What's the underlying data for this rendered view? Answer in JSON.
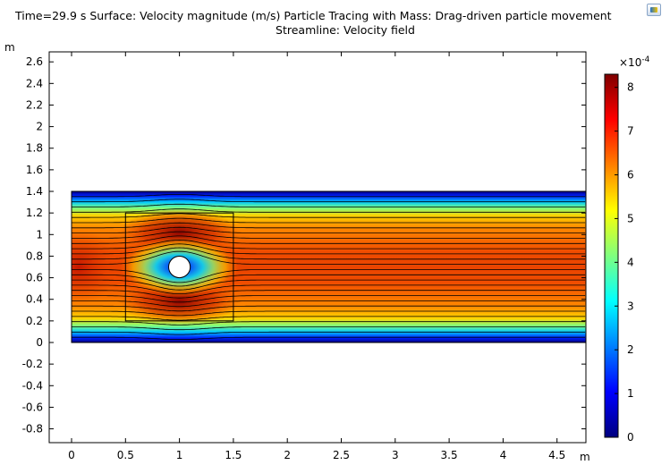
{
  "title": {
    "line1": "Time=29.9 s   Surface: Velocity magnitude (m/s) Particle Tracing with Mass: Drag-driven particle movement",
    "line2": "Streamline: Velocity field"
  },
  "toolbar": {
    "icon": "comsol-plot-icon"
  },
  "chart_data": {
    "type": "heatmap",
    "description_fields": {
      "surface": "Velocity magnitude (m/s)",
      "streamline": "Velocity field",
      "time": "29.9 s"
    },
    "xlabel": "m",
    "ylabel": "m",
    "xlim": [
      -0.45,
      4.75
    ],
    "ylim": [
      -0.9,
      2.75
    ],
    "x_ticks": [
      0,
      0.5,
      1,
      1.5,
      2,
      2.5,
      3,
      3.5,
      4,
      4.5
    ],
    "x_tick_labels": [
      "0",
      "0.5",
      "1",
      "1.5",
      "2",
      "2.5",
      "3",
      "3.5",
      "4",
      "4.5"
    ],
    "y_ticks": [
      2.6,
      2.4,
      2.2,
      2,
      1.8,
      1.6,
      1.4,
      1.2,
      1,
      0.8,
      0.6,
      0.4,
      0.2,
      0,
      -0.2,
      -0.4,
      -0.6,
      -0.8
    ],
    "y_tick_labels": [
      "2.6",
      "2.4",
      "2.2",
      "2",
      "1.8",
      "1.6",
      "1.4",
      "1.2",
      "1",
      "0.8",
      "0.6",
      "0.4",
      "0.2",
      "0",
      "-0.2",
      "-0.4",
      "-0.6",
      "-0.8"
    ],
    "domain": {
      "x": [
        0,
        4.75
      ],
      "y": [
        0,
        1.4
      ]
    },
    "obstacle": {
      "cx": 1.0,
      "cy": 0.7,
      "r": 0.1
    },
    "inner_box": {
      "x": [
        0.5,
        1.5
      ],
      "y": [
        0.2,
        1.2
      ]
    },
    "streamline_count": 28,
    "colorbar": {
      "multiplier_base": "×10",
      "multiplier_exp": "-4",
      "ticks": [
        0,
        1,
        2,
        3,
        4,
        5,
        6,
        7,
        8
      ],
      "tick_labels": [
        "0",
        "1",
        "2",
        "3",
        "4",
        "5",
        "6",
        "7",
        "8"
      ],
      "range": [
        0,
        8.3
      ],
      "colors": [
        "#00007f",
        "#0000ff",
        "#007fff",
        "#00ffff",
        "#7fff7f",
        "#ffff00",
        "#ff7f00",
        "#ff0000",
        "#7f0000"
      ]
    },
    "grid": false
  }
}
